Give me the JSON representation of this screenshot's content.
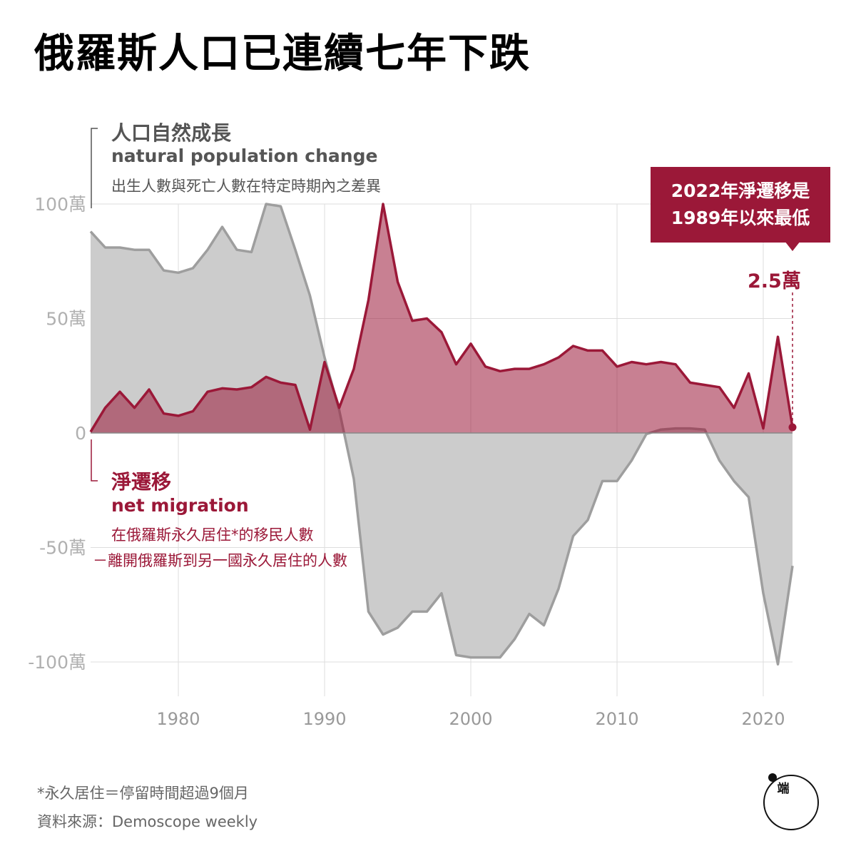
{
  "title": "俄羅斯人口已連續七年下跌",
  "legend_natural": {
    "zh": "人口自然成長",
    "en": "natural population change",
    "desc": "出生人數與死亡人數在特定時期內之差異"
  },
  "legend_migration": {
    "zh": "淨遷移",
    "en": "net migration",
    "desc_line1": "在俄羅斯永久居住*的移民人數",
    "desc_line2": "－離開俄羅斯到另一國永久居住的人數"
  },
  "callout": {
    "line1": "2022年淨遷移是",
    "line2": "1989年以來最低"
  },
  "last_value_label": "2.5萬",
  "footnote": "*永久居住＝停留時間超過9個月",
  "source": "資料來源：Demoscope weekly",
  "logo": {
    "text": "端"
  },
  "chart_data": {
    "type": "area",
    "x_range": [
      1974,
      2022
    ],
    "y_range": [
      -115,
      100
    ],
    "grid": true,
    "x_ticks": [
      1980,
      1990,
      2000,
      2010,
      2020
    ],
    "x_tick_labels": [
      "1980",
      "1990",
      "2000",
      "2010",
      "2020"
    ],
    "y_ticks": [
      100,
      50,
      0,
      -50,
      -100
    ],
    "y_tick_labels": [
      "100萬",
      "50萬",
      "0",
      "-50萬",
      "-100萬"
    ],
    "colors": {
      "natural": "#9e9e9e",
      "natural_fill": "#cccccc",
      "migration": "#9b1838",
      "migration_fill": "#c97b8d"
    },
    "series": [
      {
        "key": "natural",
        "x": [
          1974,
          1975,
          1976,
          1977,
          1978,
          1979,
          1980,
          1981,
          1982,
          1983,
          1984,
          1985,
          1986,
          1987,
          1988,
          1989,
          1990,
          1991,
          1992,
          1993,
          1994,
          1995,
          1996,
          1997,
          1998,
          1999,
          2000,
          2001,
          2002,
          2003,
          2004,
          2005,
          2006,
          2007,
          2008,
          2009,
          2010,
          2011,
          2012,
          2013,
          2014,
          2015,
          2016,
          2017,
          2018,
          2019,
          2020,
          2021,
          2022
        ],
        "values": [
          88,
          81,
          81,
          80,
          80,
          71,
          70,
          72,
          80,
          90,
          80,
          79,
          100,
          99,
          80,
          60,
          33,
          10,
          -20,
          -78,
          -88,
          -85,
          -78,
          -78,
          -70,
          -97,
          -98,
          -98,
          -98,
          -90,
          -79,
          -84,
          -68,
          -45,
          -38,
          -21,
          -21,
          -12,
          -0.5,
          1.5,
          2,
          2,
          1.5,
          -12,
          -21,
          -28,
          -70,
          -101,
          -58
        ]
      },
      {
        "key": "migration",
        "x": [
          1974,
          1975,
          1976,
          1977,
          1978,
          1979,
          1980,
          1981,
          1982,
          1983,
          1984,
          1985,
          1986,
          1987,
          1988,
          1989,
          1990,
          1991,
          1992,
          1993,
          1994,
          1995,
          1996,
          1997,
          1998,
          1999,
          2000,
          2001,
          2002,
          2003,
          2004,
          2005,
          2006,
          2007,
          2008,
          2009,
          2010,
          2011,
          2012,
          2013,
          2014,
          2015,
          2016,
          2017,
          2018,
          2019,
          2020,
          2021,
          2022
        ],
        "values": [
          0.5,
          11,
          18,
          11,
          19,
          8.5,
          7.5,
          9.5,
          18,
          19.5,
          19,
          20,
          24.5,
          22,
          21,
          1.5,
          31,
          11,
          28,
          58,
          100,
          66,
          49,
          50,
          44,
          30,
          39,
          29,
          27,
          28,
          28,
          30,
          33,
          38,
          36,
          36,
          29,
          31,
          30,
          31,
          30,
          22,
          21,
          20,
          11,
          26,
          2,
          42,
          2.5
        ]
      }
    ],
    "annotations": [
      {
        "x": 2022,
        "y": 2.5,
        "label": "2.5萬"
      }
    ]
  }
}
